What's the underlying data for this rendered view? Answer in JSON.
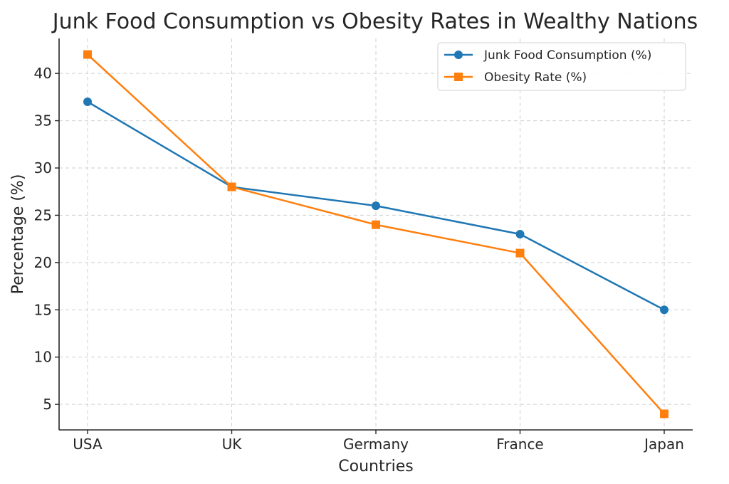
{
  "chart_data": {
    "type": "line",
    "title": "Junk Food Consumption vs Obesity Rates in Wealthy Nations",
    "xlabel": "Countries",
    "ylabel": "Percentage (%)",
    "categories": [
      "USA",
      "UK",
      "Germany",
      "France",
      "Japan"
    ],
    "ylim": [
      2.3,
      43.7
    ],
    "yticks": [
      5,
      10,
      15,
      20,
      25,
      30,
      35,
      40
    ],
    "grid": true,
    "legend_position": "top-right",
    "series": [
      {
        "name": "Junk Food Consumption (%)",
        "values": [
          37,
          28,
          26,
          23,
          15
        ],
        "color": "#1f77b4",
        "marker": "circle"
      },
      {
        "name": "Obesity Rate (%)",
        "values": [
          42,
          28,
          24,
          21,
          4
        ],
        "color": "#ff7f0e",
        "marker": "square"
      }
    ]
  }
}
